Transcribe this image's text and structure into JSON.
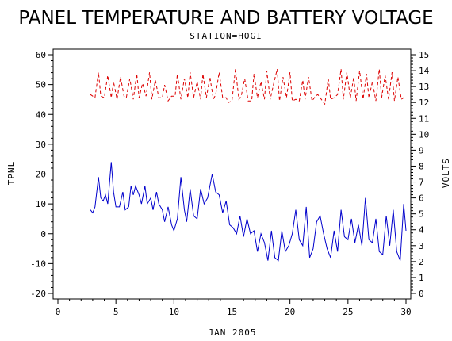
{
  "chart_data": {
    "type": "line",
    "title": "PANEL TEMPERATURE AND BATTERY VOLTAGE",
    "subtitle": "STATION=HOGI",
    "xlabel": "JAN 2005",
    "ylabel_left": "TPNL",
    "ylabel_right": "VOLTS",
    "xlim": [
      0,
      30
    ],
    "ylim_left": [
      -20,
      60
    ],
    "ylim_right": [
      0,
      15
    ],
    "x_ticks": [
      0,
      5,
      10,
      15,
      20,
      25,
      30
    ],
    "y_left_ticks": [
      -20,
      -10,
      0,
      10,
      20,
      30,
      40,
      50,
      60
    ],
    "y_right_ticks": [
      0,
      1,
      2,
      3,
      4,
      5,
      6,
      7,
      8,
      9,
      10,
      11,
      12,
      13,
      14,
      15
    ],
    "grid": false,
    "series": [
      {
        "axis": "left",
        "color": "#0000cc",
        "style": "solid",
        "x": [
          2.8,
          3.0,
          3.2,
          3.5,
          3.7,
          3.9,
          4.1,
          4.3,
          4.6,
          4.8,
          5.0,
          5.3,
          5.6,
          5.8,
          6.1,
          6.3,
          6.5,
          6.7,
          7.0,
          7.2,
          7.5,
          7.7,
          8.0,
          8.2,
          8.5,
          8.7,
          9.0,
          9.2,
          9.5,
          9.8,
          10.0,
          10.3,
          10.6,
          10.9,
          11.1,
          11.4,
          11.7,
          12.0,
          12.3,
          12.6,
          12.9,
          13.3,
          13.6,
          13.9,
          14.2,
          14.5,
          14.8,
          15.1,
          15.4,
          15.7,
          16.0,
          16.3,
          16.6,
          16.9,
          17.2,
          17.5,
          17.8,
          18.1,
          18.4,
          18.7,
          19.0,
          19.3,
          19.6,
          19.9,
          20.2,
          20.5,
          20.8,
          21.1,
          21.4,
          21.7,
          22.0,
          22.3,
          22.6,
          22.9,
          23.2,
          23.5,
          23.8,
          24.1,
          24.4,
          24.7,
          25.0,
          25.3,
          25.6,
          25.9,
          26.2,
          26.5,
          26.8,
          27.1,
          27.4,
          27.7,
          28.0,
          28.3,
          28.6,
          28.9,
          29.2,
          29.5,
          29.8,
          30.0
        ],
        "values": [
          8,
          7,
          9,
          19,
          12,
          11,
          13,
          10,
          24,
          14,
          9,
          9,
          14,
          8,
          9,
          16,
          13,
          16,
          13,
          10,
          16,
          10,
          12,
          8,
          14,
          10,
          8,
          4,
          9,
          3,
          1,
          5,
          19,
          8,
          4,
          15,
          6,
          5,
          15,
          10,
          12,
          20,
          14,
          13,
          7,
          11,
          3,
          2,
          0,
          6,
          -1,
          5,
          0,
          1,
          -6,
          0,
          -3,
          -9,
          1,
          -8,
          -9,
          1,
          -6,
          -4,
          0,
          8,
          -2,
          -4,
          9,
          -8,
          -5,
          4,
          6,
          0,
          -5,
          -8,
          1,
          -6,
          8,
          -1,
          -2,
          5,
          -3,
          3,
          -4,
          12,
          -2,
          -3,
          5,
          -6,
          -7,
          6,
          -4,
          8,
          -6,
          -9,
          10,
          1
        ]
      },
      {
        "axis": "right",
        "color": "#dd0000",
        "style": "dashed",
        "x": [
          2.8,
          3.2,
          3.5,
          3.7,
          4.0,
          4.3,
          4.6,
          4.8,
          5.1,
          5.4,
          5.7,
          5.9,
          6.2,
          6.5,
          6.8,
          7.0,
          7.3,
          7.6,
          7.9,
          8.1,
          8.4,
          8.7,
          9.0,
          9.2,
          9.5,
          9.8,
          10.1,
          10.3,
          10.6,
          10.9,
          11.2,
          11.4,
          11.7,
          12.0,
          12.3,
          12.5,
          12.8,
          13.1,
          13.4,
          13.6,
          13.9,
          14.2,
          14.5,
          14.7,
          15.0,
          15.3,
          15.6,
          15.8,
          16.1,
          16.4,
          16.7,
          16.9,
          17.2,
          17.5,
          17.8,
          18.0,
          18.3,
          18.6,
          18.9,
          19.1,
          19.4,
          19.7,
          20.0,
          20.2,
          20.5,
          20.8,
          21.1,
          21.3,
          21.6,
          21.9,
          22.2,
          22.4,
          22.7,
          23.0,
          23.3,
          23.5,
          23.8,
          24.1,
          24.4,
          24.6,
          24.9,
          25.2,
          25.5,
          25.7,
          26.0,
          26.3,
          26.6,
          26.8,
          27.1,
          27.4,
          27.7,
          27.9,
          28.2,
          28.5,
          28.8,
          29.0,
          29.3,
          29.6,
          30.0
        ],
        "values": [
          12.5,
          12.3,
          13.9,
          12.4,
          12.3,
          13.7,
          12.3,
          13.3,
          12.2,
          13.6,
          12.4,
          12.3,
          13.5,
          12.2,
          13.8,
          12.3,
          13.2,
          12.4,
          13.9,
          12.2,
          13.4,
          12.3,
          12.3,
          13.1,
          12.1,
          12.4,
          12.4,
          13.8,
          12.2,
          13.5,
          12.3,
          13.9,
          12.3,
          13.3,
          12.2,
          13.8,
          12.3,
          13.6,
          12.2,
          12.5,
          13.9,
          12.3,
          12.3,
          12.0,
          12.1,
          14.1,
          12.2,
          12.4,
          13.5,
          12.1,
          12.1,
          13.8,
          12.3,
          13.3,
          12.2,
          14.0,
          12.2,
          13.2,
          14.1,
          12.1,
          13.6,
          12.3,
          13.9,
          12.1,
          12.2,
          12.1,
          13.4,
          12.2,
          13.6,
          12.1,
          12.4,
          12.5,
          12.2,
          11.9,
          13.5,
          12.2,
          12.3,
          12.5,
          14.1,
          12.2,
          13.9,
          12.3,
          13.6,
          12.1,
          14.0,
          12.2,
          13.8,
          12.3,
          13.3,
          12.1,
          14.1,
          12.3,
          13.7,
          12.2,
          13.9,
          12.1,
          13.6,
          12.2,
          12.4
        ]
      }
    ]
  }
}
